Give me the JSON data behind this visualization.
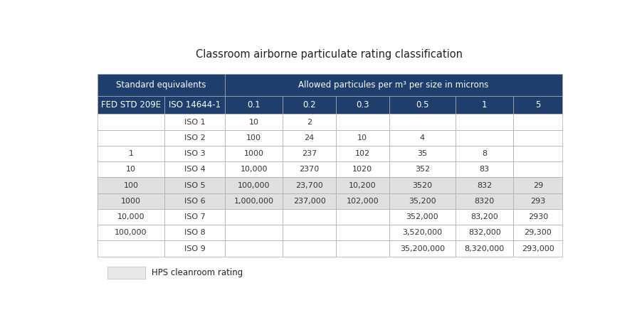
{
  "title": "Classroom airborne particulate rating classification",
  "header1_text": "Standard equivalents",
  "header2_text": "Allowed particules per m³ per size in microns",
  "col_headers": [
    "FED STD 209E",
    "ISO 14644-1",
    "0.1",
    "0.2",
    "0.3",
    "0.5",
    "1",
    "5"
  ],
  "rows": [
    [
      "",
      "ISO 1",
      "10",
      "2",
      "",
      "",
      "",
      ""
    ],
    [
      "",
      "ISO 2",
      "100",
      "24",
      "10",
      "4",
      "",
      ""
    ],
    [
      "1",
      "ISO 3",
      "1000",
      "237",
      "102",
      "35",
      "8",
      ""
    ],
    [
      "10",
      "ISO 4",
      "10,000",
      "2370",
      "1020",
      "352",
      "83",
      ""
    ],
    [
      "100",
      "ISO 5",
      "100,000",
      "23,700",
      "10,200",
      "3520",
      "832",
      "29"
    ],
    [
      "1000",
      "ISO 6",
      "1,000,000",
      "237,000",
      "102,000",
      "35,200",
      "8320",
      "293"
    ],
    [
      "10,000",
      "ISO 7",
      "",
      "",
      "",
      "352,000",
      "83,200",
      "2930"
    ],
    [
      "100,000",
      "ISO 8",
      "",
      "",
      "",
      "3,520,000",
      "832,000",
      "29,300"
    ],
    [
      "",
      "ISO 9",
      "",
      "",
      "",
      "35,200,000",
      "8,320,000",
      "293,000"
    ]
  ],
  "highlighted_rows": [
    4,
    5
  ],
  "header_bg": "#1e3f6e",
  "header_text_color": "#ffffff",
  "row_bg_normal": "#ffffff",
  "row_bg_highlight": "#e0e0e0",
  "cell_text_color": "#333333",
  "border_color": "#aaaaaa",
  "legend_box_color": "#e8e8e8",
  "legend_text": "HPS cleanroom rating",
  "title_fontsize": 10.5,
  "header_fontsize": 8.5,
  "cell_fontsize": 8.0,
  "col_widths_rel": [
    1.15,
    1.05,
    1.0,
    0.92,
    0.92,
    1.15,
    1.0,
    0.85
  ]
}
